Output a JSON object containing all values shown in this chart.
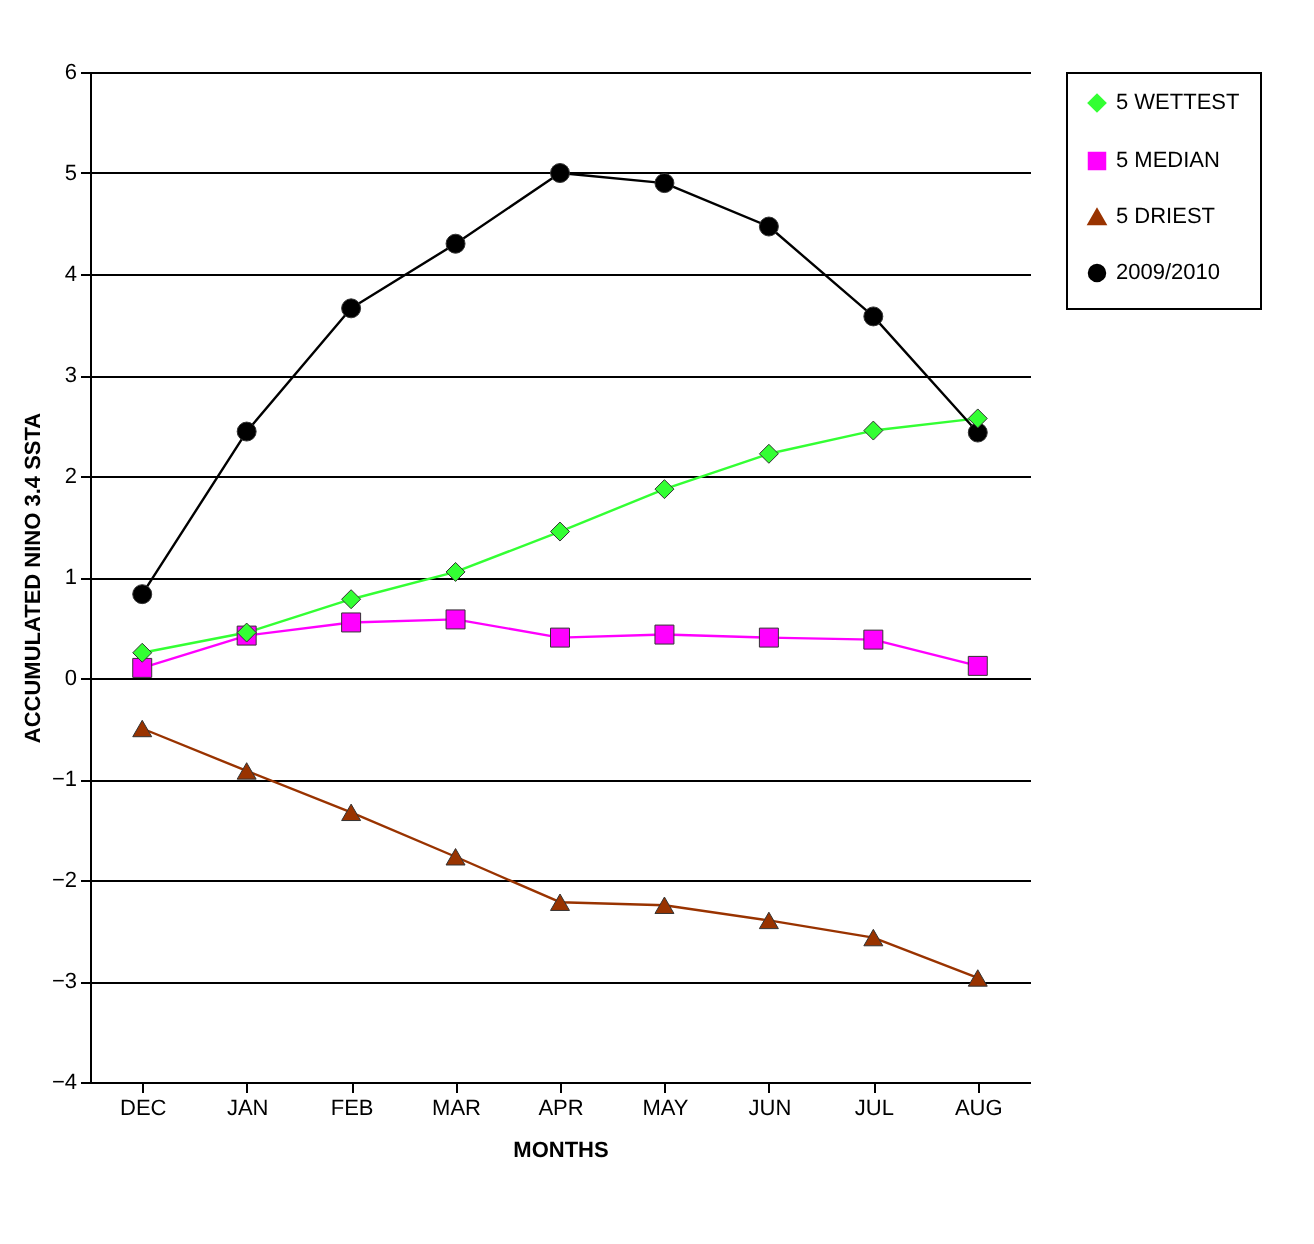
{
  "chart_data": {
    "type": "line",
    "xlabel": "MONTHS",
    "ylabel": "ACCUMULATED NINO 3.4 SSTA",
    "categories": [
      "DEC",
      "JAN",
      "FEB",
      "MAR",
      "APR",
      "MAY",
      "JUN",
      "JUL",
      "AUG"
    ],
    "ylim": [
      -4,
      6
    ],
    "yticks": [
      -4,
      -3,
      -2,
      -1,
      0,
      1,
      2,
      3,
      4,
      5,
      6
    ],
    "grid": "y",
    "legend": "right",
    "series": [
      {
        "name": "5 WETTEST",
        "color": "#33ff33",
        "marker": "diamond",
        "values": [
          0.25,
          0.45,
          0.78,
          1.05,
          1.45,
          1.87,
          2.22,
          2.45,
          2.57
        ]
      },
      {
        "name": "5 MEDIAN",
        "color": "#ff00ff",
        "marker": "square",
        "values": [
          0.1,
          0.42,
          0.55,
          0.58,
          0.4,
          0.43,
          0.4,
          0.38,
          0.12
        ]
      },
      {
        "name": "5 DRIEST",
        "color": "#993300",
        "marker": "triangle",
        "values": [
          -0.5,
          -0.92,
          -1.33,
          -1.77,
          -2.22,
          -2.25,
          -2.4,
          -2.57,
          -2.97
        ]
      },
      {
        "name": "2009/2010",
        "color": "#000000",
        "marker": "circle",
        "values": [
          0.83,
          2.44,
          3.66,
          4.3,
          5.0,
          4.9,
          4.47,
          3.58,
          2.43
        ]
      }
    ]
  }
}
